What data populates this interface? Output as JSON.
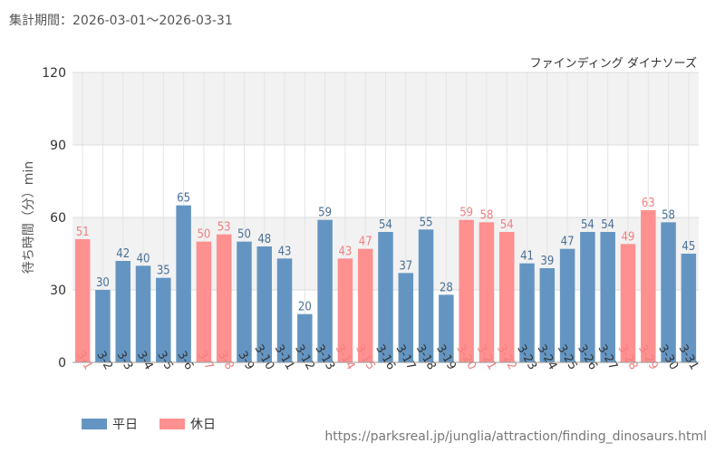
{
  "header": {
    "period_label": "集計期間：2026-03-01～2026-03-31"
  },
  "colors": {
    "weekday": "#6495c2",
    "holiday": "#ff9090",
    "weekday_label": "#4a6f96",
    "holiday_label": "#f07f7f"
  },
  "legend": {
    "weekday": "平日",
    "holiday": "休日"
  },
  "source": {
    "url": "https://parksreal.jp/junglia/attraction/finding_dinosaurs.html"
  },
  "chart_data": {
    "type": "bar",
    "title": "ファインディング ダイナソーズ",
    "ylabel": "待ち時間（分）min",
    "xlabel": "",
    "ylim": [
      0,
      120
    ],
    "yticks": [
      0,
      30,
      60,
      90,
      120
    ],
    "grid": true,
    "legend_position": "bottom-left",
    "categories": [
      "3-1",
      "3-2",
      "3-3",
      "3-4",
      "3-5",
      "3-6",
      "3-7",
      "3-8",
      "3-9",
      "3-10",
      "3-11",
      "3-12",
      "3-13",
      "3-14",
      "3-15",
      "3-16",
      "3-17",
      "3-18",
      "3-19",
      "3-20",
      "3-21",
      "3-22",
      "3-23",
      "3-24",
      "3-25",
      "3-26",
      "3-27",
      "3-28",
      "3-29",
      "3-30",
      "3-31"
    ],
    "values": [
      51,
      30,
      42,
      40,
      35,
      65,
      50,
      53,
      50,
      48,
      43,
      20,
      59,
      43,
      47,
      54,
      37,
      55,
      28,
      59,
      58,
      54,
      41,
      39,
      47,
      54,
      54,
      49,
      63,
      58,
      45
    ],
    "day_type": [
      "holiday",
      "weekday",
      "weekday",
      "weekday",
      "weekday",
      "weekday",
      "holiday",
      "holiday",
      "weekday",
      "weekday",
      "weekday",
      "weekday",
      "weekday",
      "holiday",
      "holiday",
      "weekday",
      "weekday",
      "weekday",
      "weekday",
      "holiday",
      "holiday",
      "holiday",
      "weekday",
      "weekday",
      "weekday",
      "weekday",
      "weekday",
      "holiday",
      "holiday",
      "weekday",
      "weekday"
    ]
  }
}
